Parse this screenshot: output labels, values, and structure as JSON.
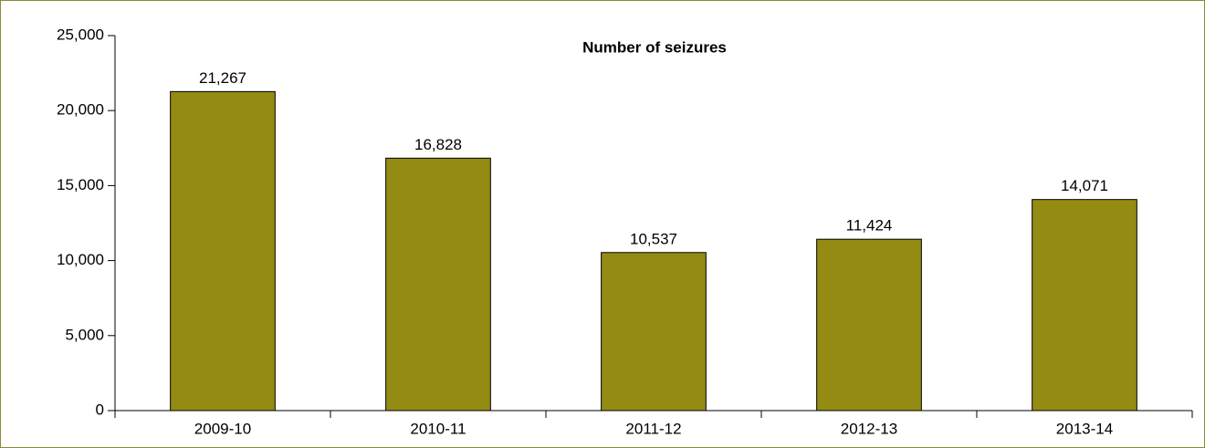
{
  "chart_data": {
    "type": "bar",
    "title": "Number of seizures",
    "categories": [
      "2009-10",
      "2010-11",
      "2011-12",
      "2012-13",
      "2013-14"
    ],
    "values": [
      21267,
      16828,
      10537,
      11424,
      14071
    ],
    "value_labels": [
      "21,267",
      "16,828",
      "10,537",
      "11,424",
      "14,071"
    ],
    "color": "#938b12",
    "ylim": [
      0,
      25000
    ],
    "yticks": [
      0,
      {
        "value": 5000,
        "label": "5,000"
      },
      {
        "value": 10000,
        "label": "10,000"
      },
      {
        "value": 15000,
        "label": "15,000"
      },
      {
        "value": 20000,
        "label": "20,000"
      },
      {
        "value": 25000,
        "label": "25,000"
      }
    ],
    "grid": false
  }
}
